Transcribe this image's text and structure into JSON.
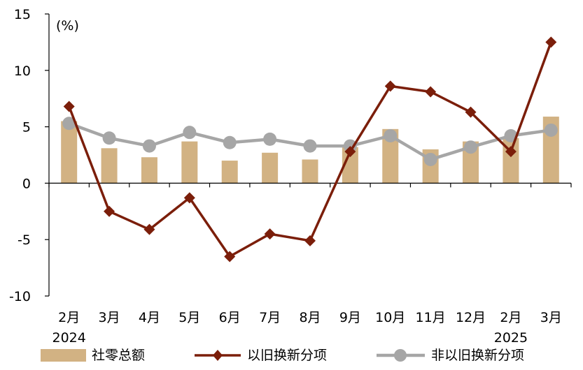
{
  "chart_data": {
    "type": "bar+line",
    "unit_label": "(%)",
    "categories": [
      "2月",
      "3月",
      "4月",
      "5月",
      "6月",
      "7月",
      "8月",
      "9月",
      "10月",
      "11月",
      "12月",
      "2月",
      "3月"
    ],
    "year_labels": [
      {
        "index": 0,
        "label": "2024"
      },
      {
        "index": 11,
        "label": "2025"
      }
    ],
    "ylim": [
      -10,
      15
    ],
    "yticks": [
      15,
      10,
      5,
      0,
      -5,
      -10
    ],
    "negative_tick_color": "#e00000",
    "series": [
      {
        "name": "社零总额",
        "kind": "bar",
        "color": "#d2b283",
        "values": [
          5.5,
          3.1,
          2.3,
          3.7,
          2.0,
          2.7,
          2.1,
          3.2,
          4.8,
          3.0,
          3.7,
          4.0,
          5.9
        ]
      },
      {
        "name": "以旧换新分项",
        "kind": "line",
        "marker": "diamond",
        "color": "#7b1e0a",
        "values": [
          6.8,
          -2.5,
          -4.1,
          -1.3,
          -6.5,
          -4.5,
          -5.1,
          2.8,
          8.6,
          8.1,
          6.3,
          2.8,
          12.5
        ]
      },
      {
        "name": "非以旧换新分项",
        "kind": "line",
        "marker": "circle",
        "color": "#a6a6a6",
        "values": [
          5.3,
          4.0,
          3.3,
          4.5,
          3.6,
          3.9,
          3.3,
          3.3,
          4.2,
          2.1,
          3.2,
          4.2,
          4.7
        ]
      }
    ],
    "legend_position": "bottom",
    "grid": false
  }
}
